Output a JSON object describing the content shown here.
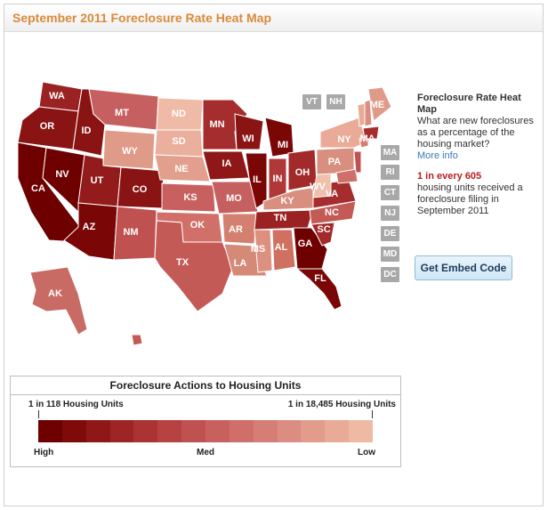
{
  "header": {
    "title": "September 2011 Foreclosure Rate Heat Map"
  },
  "map": {
    "state_labels": [
      "WA",
      "OR",
      "CA",
      "ID",
      "NV",
      "MT",
      "WY",
      "UT",
      "CO",
      "AZ",
      "NM",
      "ND",
      "SD",
      "NE",
      "KS",
      "OK",
      "TX",
      "MN",
      "IA",
      "MO",
      "AR",
      "LA",
      "WI",
      "IL",
      "MI",
      "IN",
      "OH",
      "KY",
      "TN",
      "MS",
      "AL",
      "GA",
      "FL",
      "SC",
      "NC",
      "VA",
      "WV",
      "PA",
      "NY",
      "VT",
      "NH",
      "ME",
      "MA",
      "AK"
    ],
    "small_state_boxes": [
      "VT",
      "NH",
      "MA",
      "RI",
      "CT",
      "NJ",
      "DE",
      "MD",
      "DC"
    ]
  },
  "info": {
    "title": "Foreclosure Rate Heat Map",
    "question": "What are new foreclosures as a percentage of the housing market?",
    "more_info": "More info",
    "rate": "1 in every 605",
    "desc": "housing units received a foreclosure filing in September 2011",
    "embed_label": "Get Embed Code"
  },
  "legend": {
    "title": "Foreclosure Actions to Housing Units",
    "left_label": "1 in 118 Housing Units",
    "right_label": "1 in 18,485 Housing Units",
    "high": "High",
    "med": "Med",
    "low": "Low",
    "colors": [
      "#6e0000",
      "#7f0a0a",
      "#8f1717",
      "#9e2525",
      "#ab3333",
      "#b64242",
      "#c05151",
      "#c9605d",
      "#d06f69",
      "#d67e75",
      "#dc8d81",
      "#e39c8c",
      "#e9ab97",
      "#efbaa4"
    ]
  }
}
